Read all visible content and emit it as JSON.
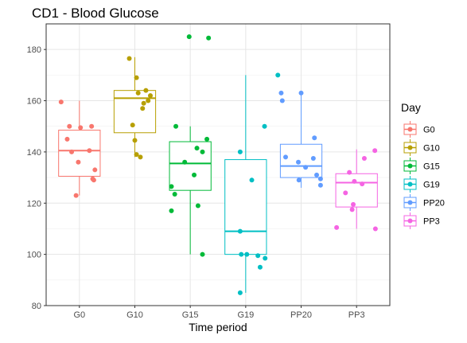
{
  "chart_data": {
    "type": "box",
    "title": "CD1 - Blood Glucose",
    "xlabel": "Time period",
    "ylabel": "",
    "ylim": [
      80,
      190
    ],
    "yticks": [
      80,
      100,
      120,
      140,
      160,
      180
    ],
    "grid": true,
    "legend": {
      "title": "Day",
      "position": "right"
    },
    "categories": [
      "G0",
      "G10",
      "G15",
      "G19",
      "PP20",
      "PP3"
    ],
    "series": [
      {
        "name": "G0",
        "color": "#F8766D",
        "box": {
          "min": 123,
          "q1": 130.5,
          "median": 140.5,
          "q3": 148.5,
          "max": 160
        },
        "points": [
          [
            -0.33,
            159.5
          ],
          [
            -0.22,
            145
          ],
          [
            -0.18,
            150
          ],
          [
            -0.14,
            140
          ],
          [
            0.02,
            149.5
          ],
          [
            -0.02,
            136
          ],
          [
            0.22,
            150
          ],
          [
            0.18,
            140.5
          ],
          [
            0.28,
            133
          ],
          [
            -0.06,
            123
          ],
          [
            0.24,
            129.5
          ],
          [
            0.26,
            129
          ]
        ]
      },
      {
        "name": "G10",
        "color": "#B79F00",
        "box": {
          "min": 138,
          "q1": 147.5,
          "median": 161,
          "q3": 164,
          "max": 177
        },
        "points": [
          [
            -0.1,
            176.5
          ],
          [
            0.03,
            169
          ],
          [
            0.06,
            163
          ],
          [
            0.2,
            164
          ],
          [
            0.28,
            162
          ],
          [
            0.24,
            160
          ],
          [
            0.16,
            159
          ],
          [
            0.14,
            157
          ],
          [
            -0.04,
            150.5
          ],
          [
            0.0,
            144.5
          ],
          [
            0.03,
            139
          ],
          [
            0.1,
            138
          ]
        ]
      },
      {
        "name": "G15",
        "color": "#00BA38",
        "box": {
          "min": 100,
          "q1": 125,
          "median": 135.5,
          "q3": 144,
          "max": 150
        },
        "points": [
          [
            -0.02,
            185
          ],
          [
            0.33,
            184.5
          ],
          [
            -0.26,
            150
          ],
          [
            0.3,
            145
          ],
          [
            0.12,
            141.5
          ],
          [
            0.22,
            140
          ],
          [
            -0.1,
            136
          ],
          [
            0.07,
            131
          ],
          [
            -0.34,
            126.5
          ],
          [
            -0.28,
            123.5
          ],
          [
            0.14,
            119
          ],
          [
            -0.34,
            117
          ],
          [
            0.22,
            100
          ]
        ]
      },
      {
        "name": "G19",
        "color": "#00BFC4",
        "box": {
          "min": 85,
          "q1": 100,
          "median": 109,
          "q3": 137,
          "max": 170
        },
        "points": [
          [
            0.58,
            170
          ],
          [
            0.34,
            150
          ],
          [
            -0.1,
            140
          ],
          [
            0.11,
            129
          ],
          [
            -0.1,
            109
          ],
          [
            -0.08,
            100
          ],
          [
            0.02,
            100
          ],
          [
            0.22,
            99.5
          ],
          [
            0.26,
            95
          ],
          [
            0.35,
            98.5
          ],
          [
            -0.1,
            85
          ]
        ]
      },
      {
        "name": "PP20",
        "color": "#619CFF",
        "box": {
          "min": 126,
          "q1": 130,
          "median": 134.5,
          "q3": 143,
          "max": 163
        },
        "points": [
          [
            -0.36,
            163
          ],
          [
            -0.34,
            160
          ],
          [
            0.0,
            163
          ],
          [
            0.24,
            145.5
          ],
          [
            -0.28,
            138
          ],
          [
            0.22,
            137.5
          ],
          [
            -0.05,
            136
          ],
          [
            0.08,
            134
          ],
          [
            0.28,
            131
          ],
          [
            0.35,
            129.5
          ],
          [
            -0.04,
            129
          ],
          [
            0.35,
            127
          ]
        ]
      },
      {
        "name": "PP3",
        "color": "#F564E3",
        "box": {
          "min": 110,
          "q1": 118.5,
          "median": 128,
          "q3": 131.5,
          "max": 141
        },
        "points": [
          [
            0.33,
            140.5
          ],
          [
            0.14,
            137.5
          ],
          [
            -0.13,
            132
          ],
          [
            0.1,
            127.5
          ],
          [
            -0.2,
            124
          ],
          [
            -0.04,
            128.5
          ],
          [
            -0.06,
            119.5
          ],
          [
            -0.08,
            117.5
          ],
          [
            0.34,
            110
          ],
          [
            -0.36,
            110.5
          ]
        ]
      }
    ]
  }
}
